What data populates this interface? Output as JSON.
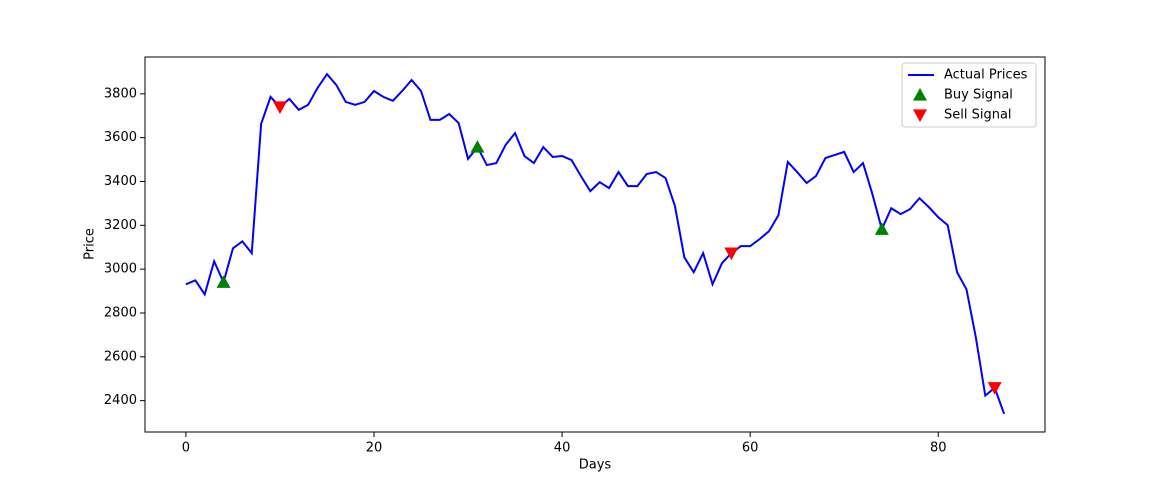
{
  "chart_data": {
    "type": "line",
    "x_label": "Days",
    "y_label": "Price",
    "xlim": [
      -4.35,
      91.35
    ],
    "ylim": [
      2257,
      3968
    ],
    "xticks": [
      0,
      20,
      40,
      60,
      80
    ],
    "yticks": [
      2400,
      2600,
      2800,
      3000,
      3200,
      3400,
      3600,
      3800
    ],
    "legend": "upper-right",
    "series": [
      {
        "name": "Actual Prices",
        "type": "line",
        "color": "#0000ff",
        "x": [
          0,
          1,
          2,
          3,
          4,
          5,
          6,
          7,
          8,
          9,
          10,
          11,
          12,
          13,
          14,
          15,
          16,
          17,
          18,
          19,
          20,
          21,
          22,
          23,
          24,
          25,
          26,
          27,
          28,
          29,
          30,
          31,
          32,
          33,
          34,
          35,
          36,
          37,
          38,
          39,
          40,
          41,
          42,
          43,
          44,
          45,
          46,
          47,
          48,
          49,
          50,
          51,
          52,
          53,
          54,
          55,
          56,
          57,
          58,
          59,
          60,
          61,
          62,
          63,
          64,
          65,
          66,
          67,
          68,
          69,
          70,
          71,
          72,
          73,
          74,
          75,
          76,
          77,
          78,
          79,
          80,
          81,
          82,
          83,
          84,
          85,
          86,
          87
        ],
        "values": [
          2931,
          2949,
          2885,
          3036,
          2940,
          3095,
          3127,
          3073,
          3663,
          3786,
          3740,
          3777,
          3727,
          3750,
          3827,
          3890,
          3840,
          3763,
          3750,
          3763,
          3813,
          3786,
          3768,
          3813,
          3863,
          3813,
          3681,
          3681,
          3708,
          3667,
          3503,
          3557,
          3475,
          3484,
          3567,
          3621,
          3516,
          3484,
          3557,
          3512,
          3516,
          3498,
          3425,
          3356,
          3397,
          3370,
          3443,
          3379,
          3379,
          3434,
          3443,
          3416,
          3288,
          3054,
          2986,
          3073,
          2931,
          3027,
          3073,
          3105,
          3105,
          3137,
          3173,
          3246,
          3489,
          3443,
          3393,
          3425,
          3507,
          3521,
          3535,
          3443,
          3484,
          3342,
          3182,
          3278,
          3251,
          3274,
          3324,
          3283,
          3237,
          3201,
          2986,
          2908,
          2688,
          2423,
          2459,
          2340
        ]
      },
      {
        "name": "Buy Signal",
        "type": "scatter",
        "marker": "triangle-up",
        "color": "#008000",
        "x": [
          4,
          31,
          74
        ],
        "values": [
          2940,
          3557,
          3182
        ]
      },
      {
        "name": "Sell Signal",
        "type": "scatter",
        "marker": "triangle-down",
        "color": "#ff0000",
        "x": [
          10,
          58,
          86
        ],
        "values": [
          3740,
          3073,
          2459
        ]
      }
    ]
  }
}
